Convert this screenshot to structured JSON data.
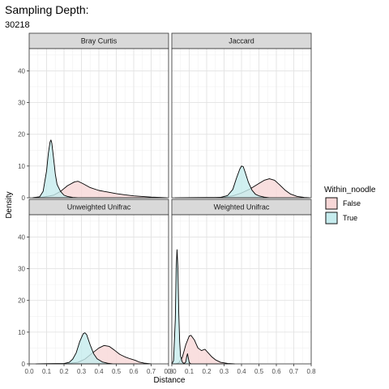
{
  "chart_data": {
    "type": "area",
    "subtype": "density-facets",
    "title": "Sampling Depth:",
    "subtitle": "30218",
    "xlabel": "Distance",
    "ylabel": "Density",
    "xlim": [
      0.0,
      0.8
    ],
    "ylim": [
      0,
      47
    ],
    "x_ticks": [
      "0.0",
      "0.1",
      "0.2",
      "0.3",
      "0.4",
      "0.5",
      "0.6",
      "0.7",
      "0.8"
    ],
    "y_ticks": [
      "0",
      "10",
      "20",
      "30",
      "40"
    ],
    "grid": true,
    "legend": {
      "title": "Within_noodle",
      "placement": "right",
      "entries": [
        {
          "label": "False",
          "color": "#f8d7d7"
        },
        {
          "label": "True",
          "color": "#c6ecee"
        }
      ]
    },
    "facets": [
      {
        "name": "Bray Curtis",
        "series": [
          {
            "name": "False",
            "points": [
              [
                0.02,
                0
              ],
              [
                0.08,
                0.2
              ],
              [
                0.14,
                0.8
              ],
              [
                0.18,
                2.0
              ],
              [
                0.22,
                3.8
              ],
              [
                0.26,
                5.0
              ],
              [
                0.28,
                5.2
              ],
              [
                0.31,
                4.4
              ],
              [
                0.35,
                3.2
              ],
              [
                0.4,
                2.3
              ],
              [
                0.45,
                1.8
              ],
              [
                0.5,
                1.3
              ],
              [
                0.55,
                0.9
              ],
              [
                0.6,
                0.6
              ],
              [
                0.65,
                0.4
              ],
              [
                0.7,
                0.2
              ],
              [
                0.75,
                0.1
              ],
              [
                0.79,
                0
              ]
            ]
          },
          {
            "name": "True",
            "points": [
              [
                0.02,
                0
              ],
              [
                0.06,
                0.3
              ],
              [
                0.08,
                2.0
              ],
              [
                0.1,
                8.5
              ],
              [
                0.11,
                14.0
              ],
              [
                0.12,
                17.6
              ],
              [
                0.125,
                18.2
              ],
              [
                0.13,
                17.2
              ],
              [
                0.14,
                12.5
              ],
              [
                0.15,
                7.5
              ],
              [
                0.16,
                4.2
              ],
              [
                0.18,
                2.0
              ],
              [
                0.2,
                0.8
              ],
              [
                0.22,
                0.4
              ],
              [
                0.25,
                0.1
              ],
              [
                0.28,
                0
              ]
            ]
          }
        ]
      },
      {
        "name": "Jaccard",
        "series": [
          {
            "name": "False",
            "points": [
              [
                0.02,
                0
              ],
              [
                0.25,
                0.05
              ],
              [
                0.3,
                0.2
              ],
              [
                0.35,
                0.6
              ],
              [
                0.4,
                1.5
              ],
              [
                0.45,
                2.8
              ],
              [
                0.5,
                4.5
              ],
              [
                0.53,
                5.5
              ],
              [
                0.56,
                6.0
              ],
              [
                0.59,
                5.5
              ],
              [
                0.62,
                4.0
              ],
              [
                0.65,
                2.4
              ],
              [
                0.68,
                1.2
              ],
              [
                0.72,
                0.4
              ],
              [
                0.76,
                0.1
              ],
              [
                0.79,
                0
              ]
            ]
          },
          {
            "name": "True",
            "points": [
              [
                0.02,
                0
              ],
              [
                0.28,
                0.1
              ],
              [
                0.32,
                0.7
              ],
              [
                0.35,
                2.6
              ],
              [
                0.37,
                6.0
              ],
              [
                0.39,
                9.0
              ],
              [
                0.4,
                10.0
              ],
              [
                0.41,
                9.8
              ],
              [
                0.42,
                8.2
              ],
              [
                0.44,
                4.8
              ],
              [
                0.46,
                2.4
              ],
              [
                0.48,
                1.1
              ],
              [
                0.5,
                0.6
              ],
              [
                0.53,
                0.2
              ],
              [
                0.56,
                0
              ]
            ]
          }
        ]
      },
      {
        "name": "Unweighted Unifrac",
        "series": [
          {
            "name": "False",
            "points": [
              [
                0.04,
                0
              ],
              [
                0.22,
                0.1
              ],
              [
                0.28,
                0.5
              ],
              [
                0.32,
                1.5
              ],
              [
                0.36,
                3.3
              ],
              [
                0.4,
                5.0
              ],
              [
                0.43,
                5.8
              ],
              [
                0.46,
                5.5
              ],
              [
                0.49,
                4.3
              ],
              [
                0.52,
                3.0
              ],
              [
                0.55,
                2.2
              ],
              [
                0.58,
                1.6
              ],
              [
                0.61,
                1.1
              ],
              [
                0.63,
                0.6
              ],
              [
                0.66,
                0.25
              ],
              [
                0.7,
                0
              ]
            ]
          },
          {
            "name": "True",
            "points": [
              [
                0.04,
                0
              ],
              [
                0.2,
                0.1
              ],
              [
                0.23,
                0.5
              ],
              [
                0.25,
                1.5
              ],
              [
                0.27,
                3.5
              ],
              [
                0.29,
                7.0
              ],
              [
                0.31,
                9.5
              ],
              [
                0.32,
                9.8
              ],
              [
                0.33,
                9.2
              ],
              [
                0.35,
                6.0
              ],
              [
                0.37,
                3.2
              ],
              [
                0.39,
                1.6
              ],
              [
                0.42,
                0.6
              ],
              [
                0.45,
                0.2
              ],
              [
                0.48,
                0
              ]
            ]
          }
        ]
      },
      {
        "name": "Weighted Unifrac",
        "series": [
          {
            "name": "False",
            "points": [
              [
                0.02,
                0
              ],
              [
                0.04,
                0.3
              ],
              [
                0.06,
                2.0
              ],
              [
                0.08,
                6.0
              ],
              [
                0.1,
                8.8
              ],
              [
                0.11,
                9.0
              ],
              [
                0.13,
                7.5
              ],
              [
                0.15,
                5.0
              ],
              [
                0.17,
                4.2
              ],
              [
                0.19,
                4.6
              ],
              [
                0.21,
                3.4
              ],
              [
                0.23,
                2.2
              ],
              [
                0.25,
                1.3
              ],
              [
                0.28,
                0.5
              ],
              [
                0.32,
                0.15
              ],
              [
                0.36,
                0
              ]
            ]
          },
          {
            "name": "True",
            "points": [
              [
                0.0,
                0
              ],
              [
                0.01,
                1.0
              ],
              [
                0.02,
                14.0
              ],
              [
                0.025,
                30.0
              ],
              [
                0.03,
                36.0
              ],
              [
                0.035,
                30.0
              ],
              [
                0.04,
                16.0
              ],
              [
                0.045,
                7.0
              ],
              [
                0.05,
                2.5
              ],
              [
                0.06,
                0.6
              ],
              [
                0.07,
                0.1
              ],
              [
                0.08,
                0.6
              ],
              [
                0.085,
                2.2
              ],
              [
                0.09,
                3.2
              ],
              [
                0.095,
                1.8
              ],
              [
                0.1,
                0.4
              ],
              [
                0.11,
                0
              ]
            ]
          }
        ]
      }
    ]
  }
}
